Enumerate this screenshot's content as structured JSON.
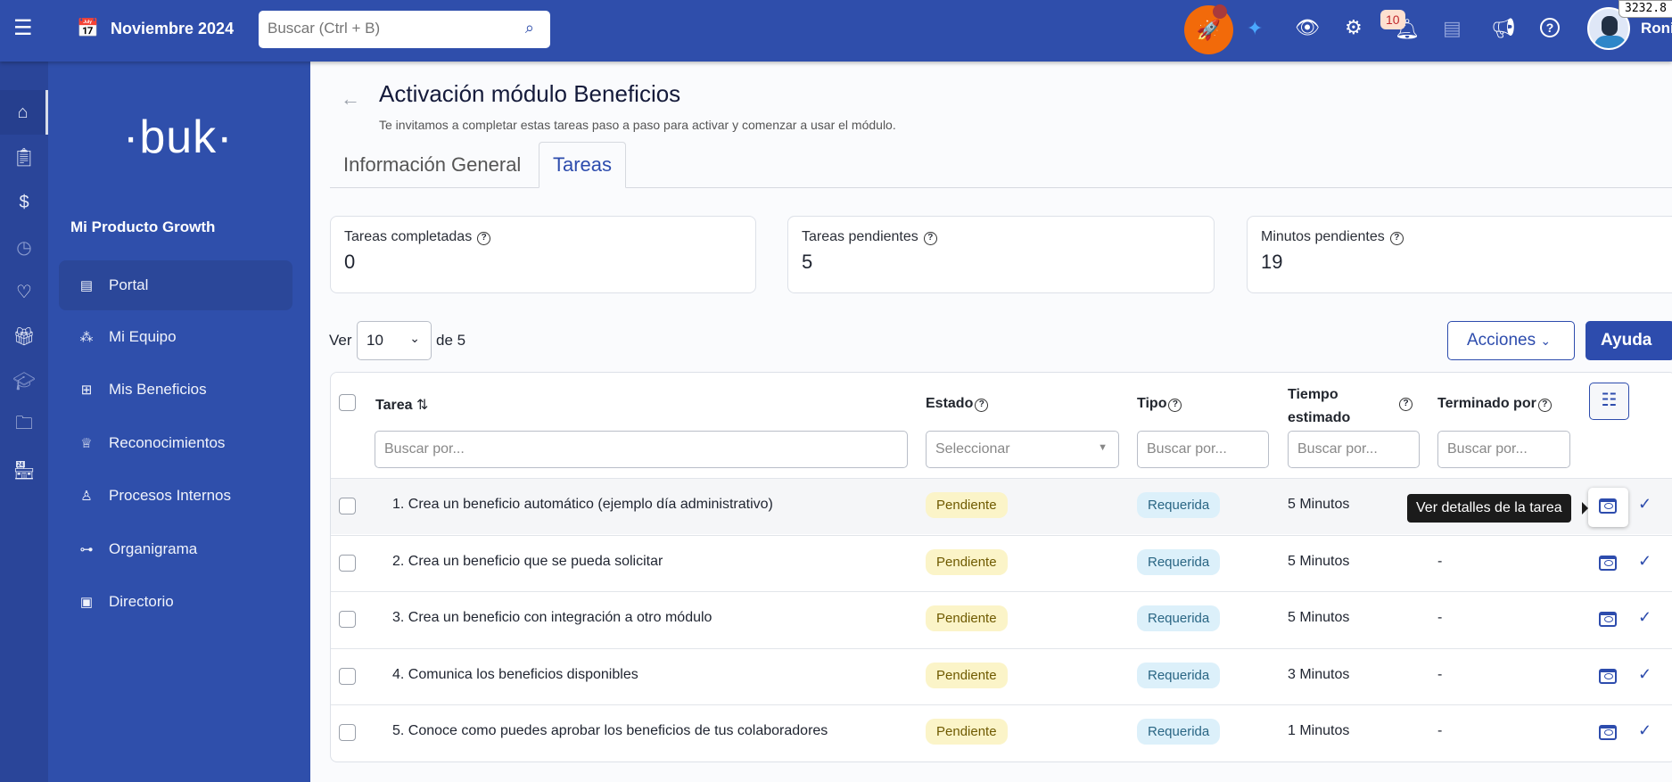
{
  "topbar": {
    "menu_icon": "hamburger-icon",
    "calendar_icon": "calendar-icon",
    "period": "Noviembre 2024",
    "search_placeholder": "Buscar (Ctrl + B)",
    "notifications_count": "10",
    "user_name": "Roni",
    "coordinate_tooltip": "3232.8",
    "colors": {
      "bar": "#2f4eab",
      "rocket": "#f26a0a"
    }
  },
  "sidebar": {
    "logo": "·buk·",
    "company": "Mi Producto Growth",
    "items": [
      {
        "label": "Portal",
        "icon": "document-icon"
      },
      {
        "label": "Mi Equipo",
        "icon": "team-icon"
      },
      {
        "label": "Mis Beneficios",
        "icon": "gift-icon"
      },
      {
        "label": "Reconocimientos",
        "icon": "medal-icon"
      },
      {
        "label": "Procesos Internos",
        "icon": "user-check-icon"
      },
      {
        "label": "Organigrama",
        "icon": "org-chart-icon"
      },
      {
        "label": "Directorio",
        "icon": "directory-icon"
      }
    ]
  },
  "page": {
    "title": "Activación módulo Beneficios",
    "subtitle": "Te invitamos a completar estas tareas paso a paso para activar y comenzar a usar el módulo.",
    "tabs": [
      "Información General",
      "Tareas"
    ],
    "active_tab": "Tareas"
  },
  "stats": [
    {
      "label": "Tareas completadas",
      "value": "0"
    },
    {
      "label": "Tareas pendientes",
      "value": "5"
    },
    {
      "label": "Minutos pendientes",
      "value": "19"
    }
  ],
  "pager": {
    "ver": "Ver",
    "per_page": "10",
    "of": "de 5"
  },
  "actions": {
    "acciones": "Acciones",
    "ayuda": "Ayuda"
  },
  "table": {
    "headers": {
      "tarea": "Tarea",
      "estado": "Estado",
      "tipo": "Tipo",
      "tiempo": "Tiempo estimado",
      "terminado": "Terminado por"
    },
    "filters": {
      "tarea": "Buscar por...",
      "estado": "Seleccionar",
      "tipo": "Buscar por...",
      "tiempo": "Buscar por...",
      "terminado": "Buscar por..."
    },
    "tooltip": "Ver detalles de la tarea",
    "rows": [
      {
        "tarea": "1. Crea un beneficio automático (ejemplo día administrativo)",
        "estado": "Pendiente",
        "tipo": "Requerida",
        "tiempo": "5 Minutos",
        "terminado": ""
      },
      {
        "tarea": "2. Crea un beneficio que se pueda solicitar",
        "estado": "Pendiente",
        "tipo": "Requerida",
        "tiempo": "5 Minutos",
        "terminado": "-"
      },
      {
        "tarea": "3. Crea un beneficio con integración a otro módulo",
        "estado": "Pendiente",
        "tipo": "Requerida",
        "tiempo": "5 Minutos",
        "terminado": "-"
      },
      {
        "tarea": "4. Comunica los beneficios disponibles",
        "estado": "Pendiente",
        "tipo": "Requerida",
        "tiempo": "3 Minutos",
        "terminado": "-"
      },
      {
        "tarea": "5. Conoce como puedes aprobar los beneficios de tus colaboradores",
        "estado": "Pendiente",
        "tipo": "Requerida",
        "tiempo": "1 Minutos",
        "terminado": "-"
      }
    ]
  }
}
